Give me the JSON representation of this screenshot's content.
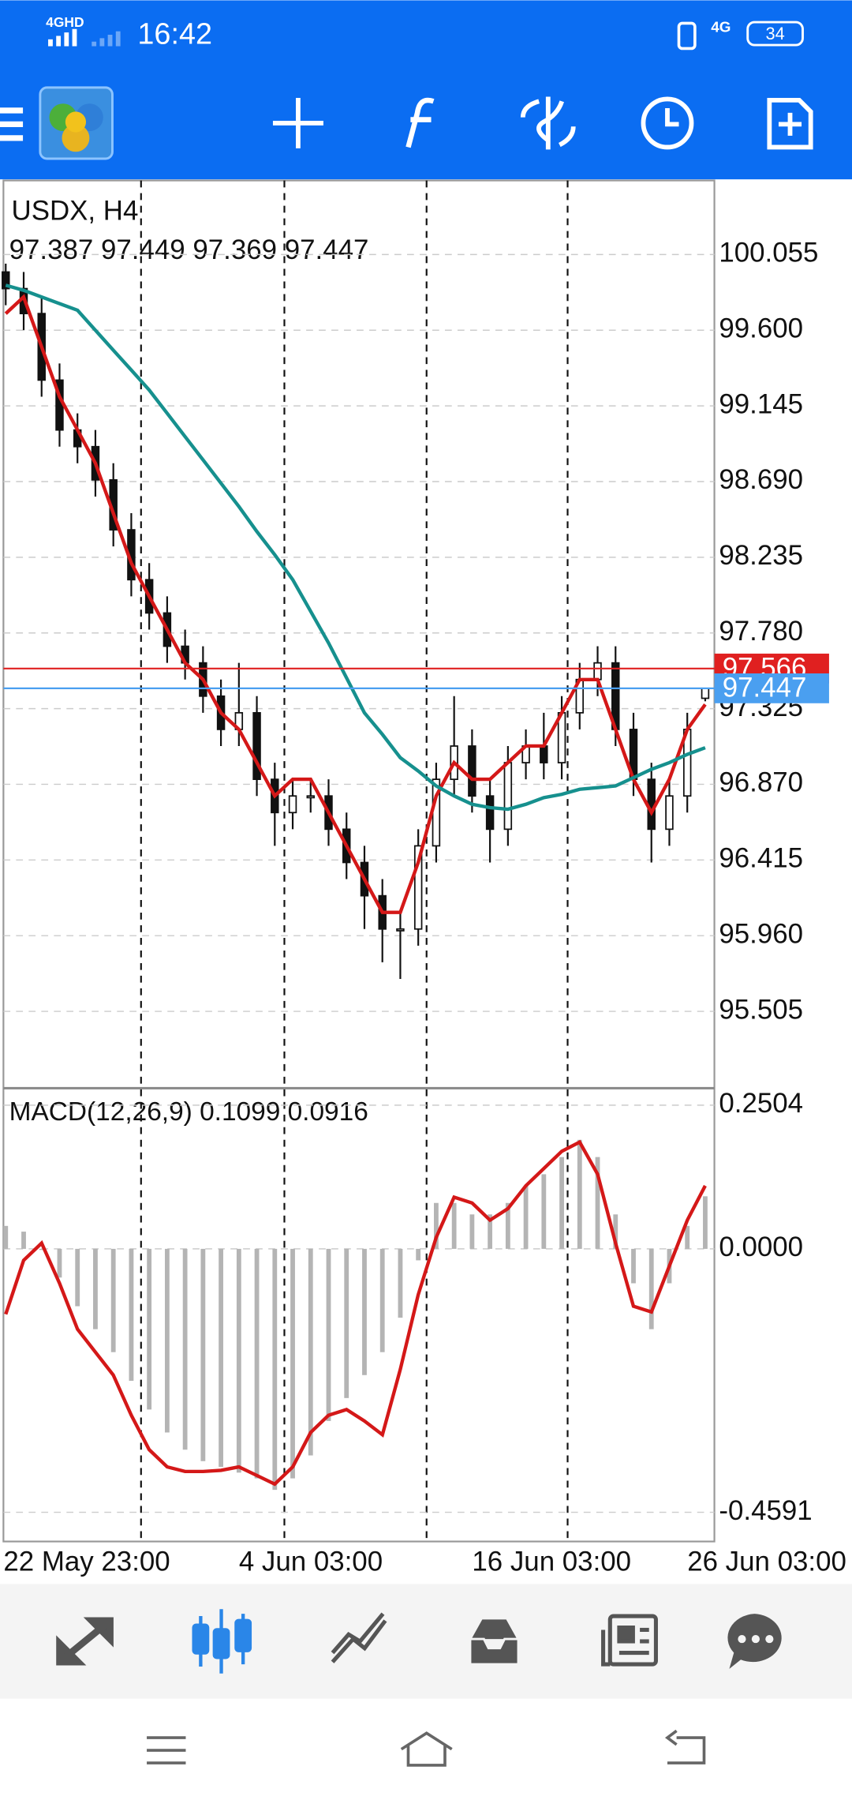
{
  "status_bar": {
    "network": "4GHD",
    "time": "16:42",
    "network2": "4G",
    "battery": "34"
  },
  "chart_data": {
    "type": "candlestick",
    "title": "USDX, H4",
    "ohlc_label": "97.387 97.449 97.369 97.447",
    "categories": [
      "22 May 23:00",
      null,
      null,
      null,
      null,
      null,
      null,
      null,
      null,
      null,
      null,
      null,
      null,
      "4 Jun 03:00",
      null,
      null,
      null,
      null,
      null,
      null,
      null,
      null,
      null,
      null,
      null,
      null,
      "16 Jun 03:00",
      null,
      null,
      null,
      null,
      null,
      null,
      null,
      null,
      null,
      null,
      null,
      "26 Jun 03:00",
      null
    ],
    "open": [
      99.95,
      99.85,
      99.7,
      99.3,
      99.0,
      98.9,
      98.7,
      98.4,
      98.1,
      97.9,
      97.7,
      97.6,
      97.4,
      97.2,
      97.3,
      96.9,
      96.7,
      96.8,
      96.8,
      96.6,
      96.4,
      96.2,
      96.0,
      96.0,
      96.5,
      96.9,
      97.1,
      96.8,
      96.6,
      97.0,
      97.1,
      97.0,
      97.3,
      97.5,
      97.6,
      97.2,
      96.9,
      96.6,
      96.8,
      97.387
    ],
    "high": [
      100.0,
      99.95,
      99.8,
      99.4,
      99.1,
      99.0,
      98.8,
      98.5,
      98.2,
      98.0,
      97.8,
      97.7,
      97.5,
      97.6,
      97.4,
      97.0,
      96.9,
      96.9,
      96.9,
      96.7,
      96.5,
      96.3,
      96.1,
      96.6,
      97.0,
      97.4,
      97.2,
      96.9,
      97.1,
      97.2,
      97.3,
      97.4,
      97.6,
      97.7,
      97.7,
      97.3,
      97.0,
      96.9,
      97.3,
      97.449
    ],
    "low": [
      99.75,
      99.6,
      99.2,
      98.9,
      98.8,
      98.6,
      98.3,
      98.0,
      97.8,
      97.6,
      97.5,
      97.3,
      97.1,
      97.1,
      96.8,
      96.5,
      96.6,
      96.7,
      96.5,
      96.3,
      96.0,
      95.8,
      95.7,
      95.9,
      96.4,
      96.8,
      96.7,
      96.4,
      96.5,
      96.9,
      96.9,
      96.9,
      97.2,
      97.4,
      97.1,
      96.8,
      96.4,
      96.5,
      96.7,
      97.369
    ],
    "close": [
      99.85,
      99.7,
      99.3,
      99.0,
      98.9,
      98.7,
      98.4,
      98.1,
      97.9,
      97.7,
      97.6,
      97.4,
      97.2,
      97.3,
      96.9,
      96.7,
      96.8,
      96.8,
      96.6,
      96.4,
      96.2,
      96.0,
      96.0,
      96.5,
      96.9,
      97.1,
      96.8,
      96.6,
      97.0,
      97.1,
      97.0,
      97.3,
      97.5,
      97.6,
      97.2,
      96.9,
      96.6,
      96.8,
      97.2,
      97.447
    ],
    "series": [
      {
        "color": "#d41818",
        "values": [
          99.7,
          99.8,
          99.5,
          99.2,
          99.0,
          98.8,
          98.5,
          98.2,
          98.0,
          97.8,
          97.6,
          97.5,
          97.3,
          97.2,
          97.0,
          96.8,
          96.9,
          96.9,
          96.7,
          96.5,
          96.3,
          96.1,
          96.1,
          96.4,
          96.8,
          97.0,
          96.9,
          96.9,
          97.0,
          97.1,
          97.1,
          97.3,
          97.5,
          97.5,
          97.2,
          96.9,
          96.7,
          96.9,
          97.2,
          97.35
        ]
      },
      {
        "color": "#16908e",
        "values": [
          99.87,
          99.84,
          99.8,
          99.76,
          99.72,
          99.6,
          99.48,
          99.36,
          99.24,
          99.1,
          98.96,
          98.82,
          98.68,
          98.54,
          98.39,
          98.25,
          98.1,
          97.91,
          97.72,
          97.51,
          97.3,
          97.17,
          97.03,
          96.95,
          96.86,
          96.8,
          96.75,
          96.73,
          96.72,
          96.75,
          96.79,
          96.81,
          96.84,
          96.85,
          96.86,
          96.91,
          96.96,
          97.0,
          97.05,
          97.09
        ]
      }
    ],
    "ylim": [
      95.05,
      100.5
    ],
    "yticks": [
      100.055,
      {
        "value": 99.6,
        "label": "99.600"
      },
      99.145,
      {
        "value": 98.69,
        "label": "98.690"
      },
      98.235,
      {
        "value": 97.78,
        "label": "97.780"
      },
      97.325,
      {
        "value": 96.87,
        "label": "96.870"
      },
      96.415,
      {
        "value": 95.96,
        "label": "95.960"
      },
      95.505
    ],
    "grid": true,
    "price_lines": [
      {
        "value": 97.566,
        "color": "#e02020"
      },
      {
        "value": 97.447,
        "color": "#4a9ff0"
      }
    ],
    "macd": {
      "title": "MACD(12,26,9) 0.1099 0.0916",
      "macd_color": "#d41818",
      "signal_color": "#b4b4b4",
      "macd": [
        -0.114,
        -0.02,
        0.01,
        -0.06,
        -0.14,
        -0.18,
        -0.22,
        -0.29,
        -0.35,
        -0.38,
        -0.388,
        -0.388,
        -0.386,
        -0.38,
        -0.395,
        -0.41,
        -0.38,
        -0.32,
        -0.29,
        -0.28,
        -0.3,
        -0.324,
        -0.21,
        -0.08,
        0.02,
        0.09,
        0.08,
        0.05,
        0.07,
        0.11,
        0.14,
        0.17,
        0.186,
        0.13,
        0.01,
        -0.1,
        -0.11,
        -0.03,
        0.05,
        0.1099
      ],
      "signal": [
        0.04,
        0.03,
        0.0,
        -0.05,
        -0.1,
        -0.14,
        -0.18,
        -0.23,
        -0.28,
        -0.32,
        -0.35,
        -0.37,
        -0.38,
        -0.39,
        -0.4,
        -0.42,
        -0.4,
        -0.36,
        -0.3,
        -0.26,
        -0.22,
        -0.18,
        -0.12,
        -0.02,
        0.08,
        0.08,
        0.06,
        0.06,
        0.08,
        0.11,
        0.13,
        0.16,
        0.19,
        0.16,
        0.06,
        -0.06,
        -0.14,
        -0.06,
        0.04,
        0.0916
      ],
      "ylim": [
        -0.51,
        0.278
      ],
      "yticks": [
        0.2504,
        {
          "value": 0,
          "label": "0.0000"
        },
        -0.4591
      ]
    }
  }
}
